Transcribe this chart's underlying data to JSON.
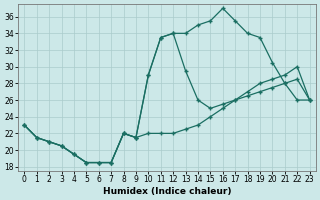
{
  "xlabel": "Humidex (Indice chaleur)",
  "xlim": [
    -0.5,
    23.5
  ],
  "ylim": [
    17.5,
    37.5
  ],
  "xticks": [
    0,
    1,
    2,
    3,
    4,
    5,
    6,
    7,
    8,
    9,
    10,
    11,
    12,
    13,
    14,
    15,
    16,
    17,
    18,
    19,
    20,
    21,
    22,
    23
  ],
  "yticks": [
    18,
    20,
    22,
    24,
    26,
    28,
    30,
    32,
    34,
    36
  ],
  "bg_color": "#cce8e8",
  "line_color": "#1a6e62",
  "grid_color": "#aacccc",
  "line1_x": [
    0,
    1,
    2,
    3,
    4,
    5,
    6,
    7,
    8,
    9,
    10,
    11,
    12,
    13,
    14,
    15,
    16,
    17,
    18,
    19,
    20,
    21,
    22,
    23
  ],
  "line1_y": [
    23,
    21.5,
    21,
    20.5,
    19.5,
    18.5,
    18.5,
    18.5,
    22,
    21.5,
    29,
    33.5,
    34,
    34,
    35,
    35.5,
    37,
    35.5,
    34,
    33.5,
    30.5,
    28,
    26,
    26
  ],
  "line2_x": [
    0,
    1,
    2,
    3,
    4,
    5,
    6,
    7,
    8,
    9,
    10,
    11,
    12,
    13,
    14,
    15,
    16,
    17,
    18,
    19,
    20,
    21,
    22,
    23
  ],
  "line2_y": [
    23,
    21.5,
    21,
    20.5,
    19.5,
    18.5,
    18.5,
    18.5,
    22,
    21.5,
    29,
    33.5,
    34,
    29.5,
    26,
    25,
    25.5,
    26,
    26.5,
    27,
    27.5,
    28,
    28.5,
    26
  ],
  "line3_x": [
    0,
    1,
    2,
    3,
    4,
    5,
    6,
    7,
    8,
    9,
    10,
    11,
    12,
    13,
    14,
    15,
    16,
    17,
    18,
    19,
    20,
    21,
    22,
    23
  ],
  "line3_y": [
    23,
    21.5,
    21,
    20.5,
    19.5,
    18.5,
    18.5,
    18.5,
    22,
    21.5,
    22,
    22,
    22,
    22.5,
    23,
    24,
    25,
    26,
    27,
    28,
    28.5,
    29,
    30,
    26
  ]
}
